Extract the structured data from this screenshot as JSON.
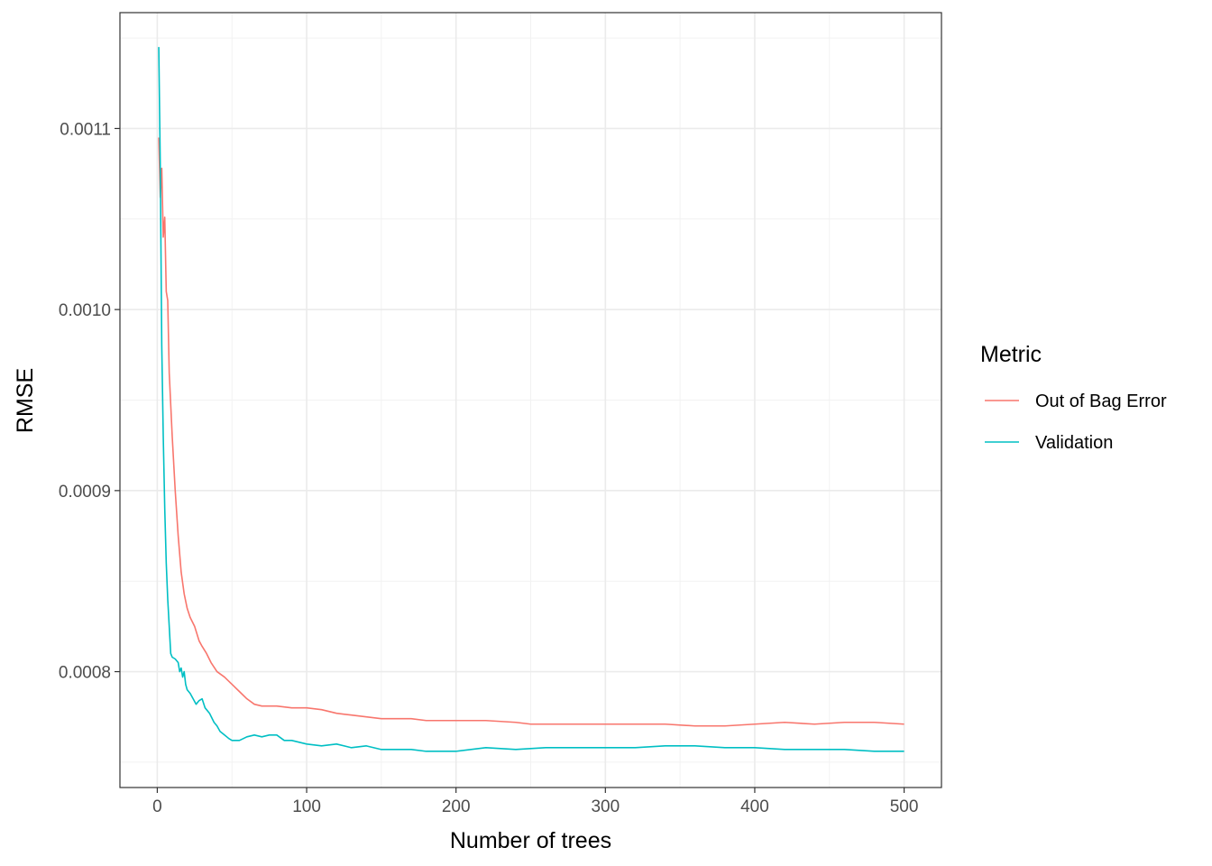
{
  "chart_data": {
    "type": "line",
    "title": "",
    "xlabel": "Number of trees",
    "ylabel": "RMSE",
    "xlim": [
      -25,
      525
    ],
    "ylim": [
      0.000736,
      0.001164
    ],
    "x_ticks": [
      0,
      100,
      200,
      300,
      400,
      500
    ],
    "x_tick_labels": [
      "0",
      "100",
      "200",
      "300",
      "400",
      "500"
    ],
    "y_ticks": [
      0.0008,
      0.0009,
      0.001,
      0.0011
    ],
    "y_tick_labels": [
      "0.0008",
      "0.0009",
      "0.0010",
      "0.0011"
    ],
    "grid": true,
    "legend": {
      "title": "Metric",
      "position": "right"
    },
    "series": [
      {
        "name": "Out of Bag Error",
        "color": "#F8766D",
        "points": [
          [
            1,
            0.001095
          ],
          [
            2,
            0.001062
          ],
          [
            3,
            0.001078
          ],
          [
            4,
            0.00104
          ],
          [
            5,
            0.001051
          ],
          [
            6,
            0.00101
          ],
          [
            7,
            0.001005
          ],
          [
            8,
            0.000965
          ],
          [
            10,
            0.00093
          ],
          [
            12,
            0.0009
          ],
          [
            14,
            0.000875
          ],
          [
            16,
            0.000855
          ],
          [
            18,
            0.000843
          ],
          [
            20,
            0.000835
          ],
          [
            22,
            0.00083
          ],
          [
            25,
            0.000825
          ],
          [
            28,
            0.000817
          ],
          [
            30,
            0.000814
          ],
          [
            33,
            0.00081
          ],
          [
            36,
            0.000805
          ],
          [
            40,
            0.0008
          ],
          [
            45,
            0.000797
          ],
          [
            50,
            0.000793
          ],
          [
            55,
            0.000789
          ],
          [
            60,
            0.000785
          ],
          [
            65,
            0.000782
          ],
          [
            70,
            0.000781
          ],
          [
            80,
            0.000781
          ],
          [
            90,
            0.00078
          ],
          [
            100,
            0.00078
          ],
          [
            110,
            0.000779
          ],
          [
            120,
            0.000777
          ],
          [
            130,
            0.000776
          ],
          [
            140,
            0.000775
          ],
          [
            150,
            0.000774
          ],
          [
            160,
            0.000774
          ],
          [
            170,
            0.000774
          ],
          [
            180,
            0.000773
          ],
          [
            190,
            0.000773
          ],
          [
            200,
            0.000773
          ],
          [
            220,
            0.000773
          ],
          [
            240,
            0.000772
          ],
          [
            250,
            0.000771
          ],
          [
            260,
            0.000771
          ],
          [
            280,
            0.000771
          ],
          [
            300,
            0.000771
          ],
          [
            320,
            0.000771
          ],
          [
            340,
            0.000771
          ],
          [
            360,
            0.00077
          ],
          [
            380,
            0.00077
          ],
          [
            400,
            0.000771
          ],
          [
            420,
            0.000772
          ],
          [
            440,
            0.000771
          ],
          [
            460,
            0.000772
          ],
          [
            480,
            0.000772
          ],
          [
            500,
            0.000771
          ]
        ]
      },
      {
        "name": "Validation",
        "color": "#00BFC4",
        "points": [
          [
            1,
            0.001145
          ],
          [
            2,
            0.00108
          ],
          [
            3,
            0.00098
          ],
          [
            4,
            0.00093
          ],
          [
            5,
            0.00089
          ],
          [
            6,
            0.00086
          ],
          [
            7,
            0.00084
          ],
          [
            8,
            0.000825
          ],
          [
            9,
            0.00081
          ],
          [
            10,
            0.000808
          ],
          [
            12,
            0.000807
          ],
          [
            14,
            0.000805
          ],
          [
            15,
            0.0008
          ],
          [
            16,
            0.000802
          ],
          [
            17,
            0.000797
          ],
          [
            18,
            0.0008
          ],
          [
            19,
            0.000793
          ],
          [
            20,
            0.00079
          ],
          [
            22,
            0.000788
          ],
          [
            24,
            0.000785
          ],
          [
            26,
            0.000782
          ],
          [
            28,
            0.000784
          ],
          [
            30,
            0.000785
          ],
          [
            32,
            0.00078
          ],
          [
            35,
            0.000777
          ],
          [
            38,
            0.000772
          ],
          [
            40,
            0.00077
          ],
          [
            42,
            0.000767
          ],
          [
            45,
            0.000765
          ],
          [
            48,
            0.000763
          ],
          [
            50,
            0.000762
          ],
          [
            55,
            0.000762
          ],
          [
            60,
            0.000764
          ],
          [
            65,
            0.000765
          ],
          [
            70,
            0.000764
          ],
          [
            75,
            0.000765
          ],
          [
            80,
            0.000765
          ],
          [
            85,
            0.000762
          ],
          [
            90,
            0.000762
          ],
          [
            100,
            0.00076
          ],
          [
            110,
            0.000759
          ],
          [
            120,
            0.00076
          ],
          [
            130,
            0.000758
          ],
          [
            140,
            0.000759
          ],
          [
            150,
            0.000757
          ],
          [
            160,
            0.000757
          ],
          [
            170,
            0.000757
          ],
          [
            180,
            0.000756
          ],
          [
            190,
            0.000756
          ],
          [
            200,
            0.000756
          ],
          [
            220,
            0.000758
          ],
          [
            240,
            0.000757
          ],
          [
            260,
            0.000758
          ],
          [
            280,
            0.000758
          ],
          [
            300,
            0.000758
          ],
          [
            320,
            0.000758
          ],
          [
            340,
            0.000759
          ],
          [
            360,
            0.000759
          ],
          [
            380,
            0.000758
          ],
          [
            400,
            0.000758
          ],
          [
            420,
            0.000757
          ],
          [
            440,
            0.000757
          ],
          [
            460,
            0.000757
          ],
          [
            480,
            0.000756
          ],
          [
            500,
            0.000756
          ]
        ]
      }
    ]
  }
}
